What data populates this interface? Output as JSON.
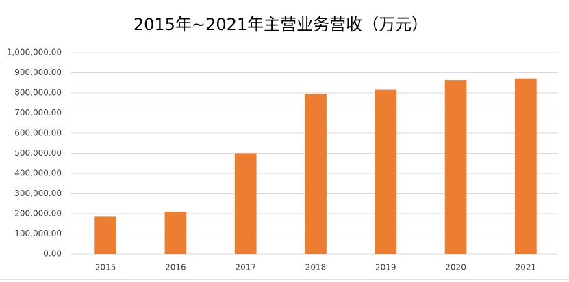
{
  "chart_data": {
    "type": "bar",
    "title": "2015年~2021年主营业务营收（万元）",
    "categories": [
      "2015",
      "2016",
      "2017",
      "2018",
      "2019",
      "2020",
      "2021"
    ],
    "values": [
      185000,
      210000,
      500000,
      795000,
      815000,
      864000,
      872000
    ],
    "color": "#ed7d31",
    "ylim": [
      0,
      1000000
    ],
    "yticks": [
      {
        "value": 0,
        "label": "0.00"
      },
      {
        "value": 100000,
        "label": "100,000.00"
      },
      {
        "value": 200000,
        "label": "200,000.00"
      },
      {
        "value": 300000,
        "label": "300,000.00"
      },
      {
        "value": 400000,
        "label": "400,000.00"
      },
      {
        "value": 500000,
        "label": "500,000.00"
      },
      {
        "value": 600000,
        "label": "600,000.00"
      },
      {
        "value": 700000,
        "label": "700,000.00"
      },
      {
        "value": 800000,
        "label": "800,000.00"
      },
      {
        "value": 900000,
        "label": "900,000.00"
      },
      {
        "value": 1000000,
        "label": "1,000,000.00"
      }
    ],
    "grid": true
  }
}
